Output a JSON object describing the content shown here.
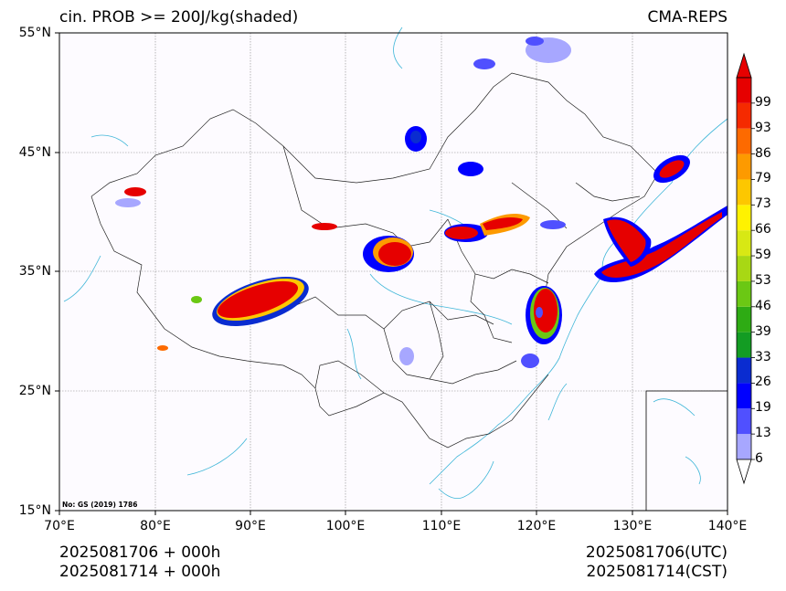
{
  "header": {
    "title_left": "cin. PROB >= 200J/kg(shaded)",
    "title_right": "CMA-REPS"
  },
  "axes": {
    "lat_labels": [
      "55°N",
      "45°N",
      "35°N",
      "25°N",
      "15°N"
    ],
    "lon_labels": [
      "70°E",
      "80°E",
      "90°E",
      "100°E",
      "110°E",
      "120°E",
      "130°E",
      "140°E"
    ],
    "lat_range": [
      15,
      55
    ],
    "lon_range": [
      70,
      140
    ]
  },
  "colorbar": {
    "levels": [
      "6",
      "13",
      "19",
      "26",
      "33",
      "39",
      "46",
      "53",
      "59",
      "66",
      "73",
      "79",
      "86",
      "93",
      "99"
    ],
    "colors": [
      "#a7a7ff",
      "#5050ff",
      "#0000ff",
      "#0a2cd0",
      "#139c23",
      "#2eab14",
      "#6bc814",
      "#a8d814",
      "#d8e814",
      "#fff200",
      "#fdc700",
      "#fd9a00",
      "#fd6a00",
      "#f52a00",
      "#e60000"
    ]
  },
  "watermark": "No: GS (2019) 1786",
  "footer": {
    "left_line1": "2025081706  +  000h",
    "left_line2": "2025081714  +  000h",
    "right_line1": "2025081706(UTC)",
    "right_line2": "2025081714(CST)"
  },
  "colors": {
    "coastline": "#3fb6d8",
    "border": "#222222",
    "grid": "#888888",
    "background": "#fdfbff"
  }
}
